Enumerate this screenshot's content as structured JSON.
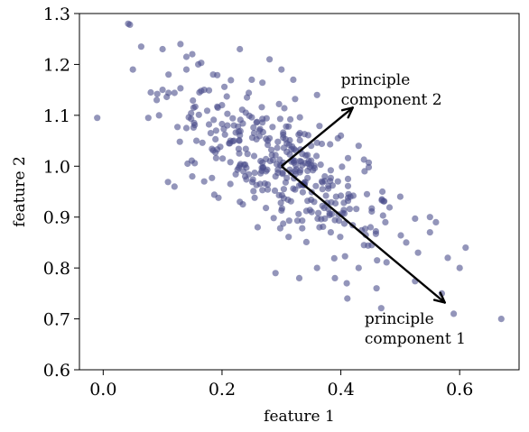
{
  "chart_data": {
    "type": "scatter",
    "title": "",
    "xlabel": "feature 1",
    "ylabel": "feature 2",
    "xlim": [
      -0.04,
      0.7
    ],
    "ylim": [
      0.6,
      1.3
    ],
    "xticks": [
      "0.0",
      "0.2",
      "0.4",
      "0.6"
    ],
    "xtick_values": [
      0.0,
      0.2,
      0.4,
      0.6
    ],
    "yticks": [
      "0.6",
      "0.7",
      "0.8",
      "0.9",
      "1.0",
      "1.1",
      "1.2",
      "1.3"
    ],
    "ytick_values": [
      0.6,
      0.7,
      0.8,
      0.9,
      1.0,
      1.1,
      1.2,
      1.3
    ],
    "grid": false,
    "point_color": "#4b4e8c",
    "point_opacity": 0.6,
    "cluster": {
      "center": [
        0.3,
        1.0
      ],
      "n_points": 400,
      "std_major": 0.115,
      "std_minor": 0.045,
      "major_direction": [
        1,
        -0.93
      ]
    },
    "points": [
      [
        -0.01,
        1.095
      ],
      [
        0.045,
        1.278
      ],
      [
        0.05,
        1.19
      ],
      [
        0.08,
        1.145
      ],
      [
        0.1,
        1.23
      ],
      [
        0.13,
        1.24
      ],
      [
        0.15,
        1.22
      ],
      [
        0.16,
        1.2
      ],
      [
        0.17,
        1.15
      ],
      [
        0.09,
        1.13
      ],
      [
        0.11,
        1.18
      ],
      [
        0.19,
        1.07
      ],
      [
        0.12,
        0.96
      ],
      [
        0.15,
        0.98
      ],
      [
        0.17,
        0.97
      ],
      [
        0.23,
        0.93
      ],
      [
        0.26,
        0.88
      ],
      [
        0.29,
        0.79
      ],
      [
        0.33,
        0.78
      ],
      [
        0.36,
        0.8
      ],
      [
        0.39,
        0.78
      ],
      [
        0.41,
        0.77
      ],
      [
        0.43,
        0.8
      ],
      [
        0.46,
        0.76
      ],
      [
        0.51,
        0.85
      ],
      [
        0.53,
        0.83
      ],
      [
        0.55,
        0.87
      ],
      [
        0.57,
        0.75
      ],
      [
        0.59,
        0.71
      ],
      [
        0.67,
        0.7
      ],
      [
        0.61,
        0.84
      ],
      [
        0.6,
        0.8
      ],
      [
        0.58,
        0.82
      ],
      [
        0.56,
        0.89
      ],
      [
        0.5,
        0.94
      ],
      [
        0.55,
        0.9
      ],
      [
        0.47,
        0.95
      ],
      [
        0.44,
        0.99
      ],
      [
        0.4,
        1.06
      ],
      [
        0.43,
        1.04
      ],
      [
        0.36,
        1.14
      ],
      [
        0.32,
        1.17
      ],
      [
        0.3,
        1.19
      ],
      [
        0.28,
        1.21
      ],
      [
        0.25,
        1.17
      ],
      [
        0.2,
        1.12
      ],
      [
        0.22,
        1.08
      ],
      [
        0.1,
        1.15
      ],
      [
        0.14,
        1.19
      ],
      [
        0.23,
        1.23
      ]
    ],
    "annotations": [
      {
        "label_lines": [
          "principle",
          "component 2"
        ],
        "from": [
          0.3,
          1.0
        ],
        "to": [
          0.42,
          1.115
        ],
        "label_anchor": [
          0.4,
          1.16
        ]
      },
      {
        "label_lines": [
          "principle",
          "component 1"
        ],
        "from": [
          0.3,
          1.0
        ],
        "to": [
          0.575,
          0.732
        ],
        "label_anchor": [
          0.44,
          0.69
        ]
      }
    ]
  }
}
